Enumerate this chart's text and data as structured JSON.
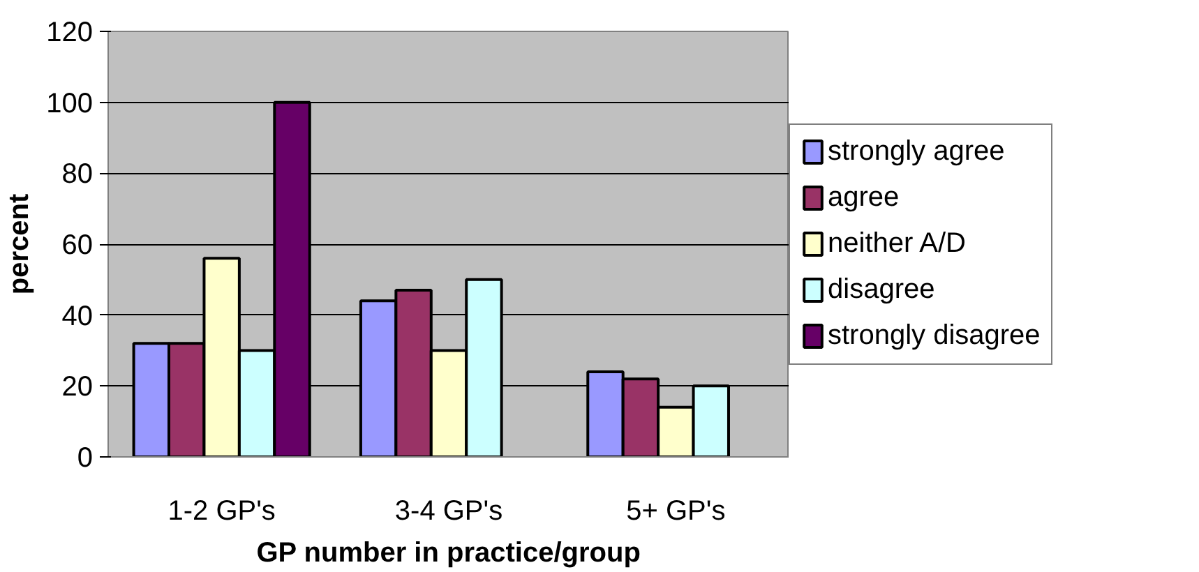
{
  "chart_data": {
    "type": "bar",
    "xlabel": "GP number in practice/group",
    "ylabel": "percent",
    "categories": [
      "1-2 GP's",
      "3-4 GP's",
      "5+ GP's"
    ],
    "series": [
      {
        "name": "strongly agree",
        "color": "#9999ff",
        "values": [
          32,
          44,
          24
        ]
      },
      {
        "name": "agree",
        "color": "#993366",
        "values": [
          32,
          47,
          22
        ]
      },
      {
        "name": "neither A/D",
        "color": "#ffffcc",
        "values": [
          56,
          30,
          14
        ]
      },
      {
        "name": "disagree",
        "color": "#ccffff",
        "values": [
          30,
          50,
          20
        ]
      },
      {
        "name": "strongly disagree",
        "color": "#660066",
        "values": [
          100,
          null,
          null
        ]
      }
    ],
    "ylim": [
      0,
      120
    ],
    "yticks": [
      0,
      20,
      40,
      60,
      80,
      100,
      120
    ],
    "grid": "y",
    "legend": "right"
  }
}
